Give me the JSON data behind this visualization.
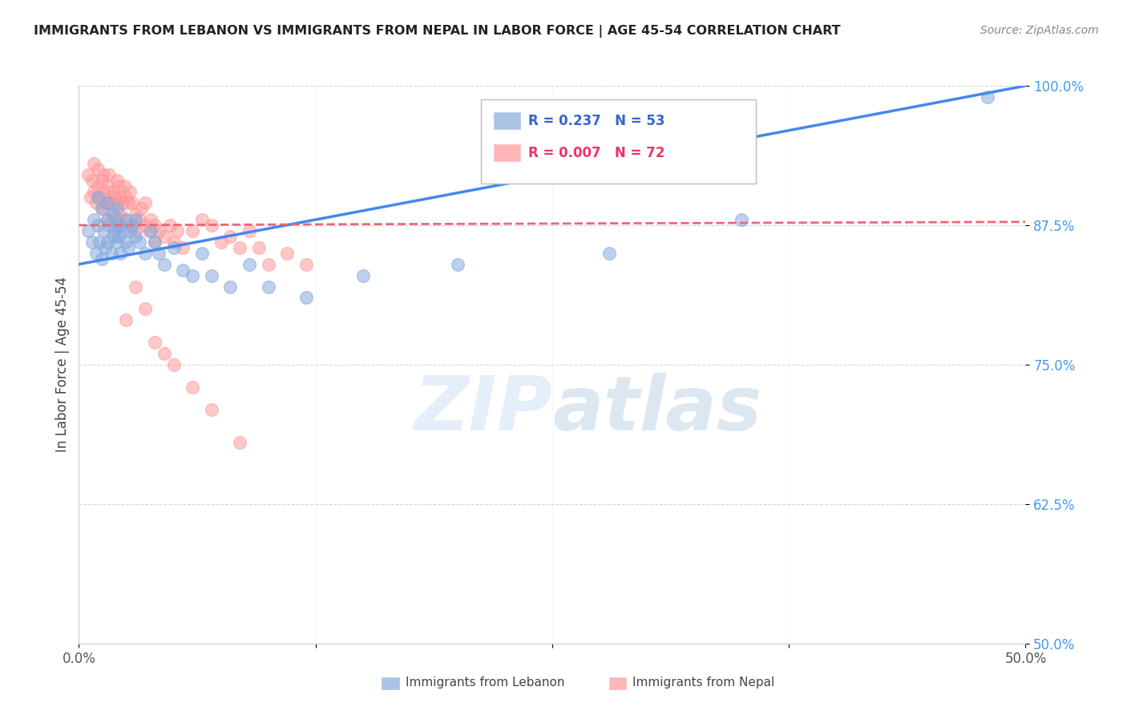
{
  "title": "IMMIGRANTS FROM LEBANON VS IMMIGRANTS FROM NEPAL IN LABOR FORCE | AGE 45-54 CORRELATION CHART",
  "source": "Source: ZipAtlas.com",
  "ylabel": "In Labor Force | Age 45-54",
  "xlim": [
    0.0,
    0.5
  ],
  "ylim": [
    0.5,
    1.0
  ],
  "yticks": [
    0.5,
    0.625,
    0.75,
    0.875,
    1.0
  ],
  "ytick_labels": [
    "50.0%",
    "62.5%",
    "75.0%",
    "87.5%",
    "100.0%"
  ],
  "xticks": [
    0.0,
    0.125,
    0.25,
    0.375,
    0.5
  ],
  "xtick_labels": [
    "0.0%",
    "",
    "",
    "",
    "50.0%"
  ],
  "legend_blue_label": "Immigrants from Lebanon",
  "legend_pink_label": "Immigrants from Nepal",
  "R_blue": 0.237,
  "N_blue": 53,
  "R_pink": 0.007,
  "N_pink": 72,
  "blue_color": "#88AADD",
  "pink_color": "#FF9999",
  "blue_line_color": "#4488EE",
  "pink_line_color": "#EE6677",
  "watermark_zip": "ZIP",
  "watermark_atlas": "atlas",
  "background_color": "#FFFFFF",
  "grid_color": "#CCCCCC",
  "blue_trend_x0": 0.0,
  "blue_trend_y0": 0.84,
  "blue_trend_x1": 0.5,
  "blue_trend_y1": 1.0,
  "pink_trend_x0": 0.0,
  "pink_trend_y0": 0.875,
  "pink_trend_x1": 0.5,
  "pink_trend_y1": 0.878,
  "blue_scatter_x": [
    0.005,
    0.007,
    0.008,
    0.009,
    0.01,
    0.01,
    0.011,
    0.012,
    0.012,
    0.013,
    0.014,
    0.015,
    0.015,
    0.015,
    0.016,
    0.017,
    0.018,
    0.018,
    0.019,
    0.02,
    0.02,
    0.02,
    0.021,
    0.022,
    0.022,
    0.023,
    0.025,
    0.025,
    0.026,
    0.027,
    0.028,
    0.03,
    0.03,
    0.032,
    0.035,
    0.038,
    0.04,
    0.042,
    0.045,
    0.05,
    0.055,
    0.06,
    0.065,
    0.07,
    0.08,
    0.09,
    0.1,
    0.12,
    0.15,
    0.2,
    0.28,
    0.35,
    0.48
  ],
  "blue_scatter_y": [
    0.87,
    0.86,
    0.88,
    0.85,
    0.875,
    0.9,
    0.86,
    0.845,
    0.89,
    0.87,
    0.855,
    0.88,
    0.895,
    0.86,
    0.875,
    0.85,
    0.885,
    0.865,
    0.87,
    0.875,
    0.86,
    0.89,
    0.865,
    0.875,
    0.85,
    0.87,
    0.88,
    0.86,
    0.855,
    0.87,
    0.875,
    0.865,
    0.88,
    0.86,
    0.85,
    0.87,
    0.86,
    0.85,
    0.84,
    0.855,
    0.835,
    0.83,
    0.85,
    0.83,
    0.82,
    0.84,
    0.82,
    0.81,
    0.83,
    0.84,
    0.85,
    0.88,
    0.99
  ],
  "pink_scatter_x": [
    0.005,
    0.006,
    0.007,
    0.008,
    0.008,
    0.009,
    0.01,
    0.01,
    0.011,
    0.012,
    0.012,
    0.013,
    0.013,
    0.014,
    0.015,
    0.015,
    0.016,
    0.016,
    0.017,
    0.018,
    0.018,
    0.019,
    0.02,
    0.02,
    0.02,
    0.021,
    0.022,
    0.022,
    0.023,
    0.024,
    0.025,
    0.025,
    0.026,
    0.027,
    0.028,
    0.028,
    0.03,
    0.03,
    0.032,
    0.033,
    0.035,
    0.035,
    0.037,
    0.038,
    0.04,
    0.04,
    0.042,
    0.045,
    0.048,
    0.05,
    0.052,
    0.055,
    0.06,
    0.065,
    0.07,
    0.075,
    0.08,
    0.085,
    0.09,
    0.095,
    0.1,
    0.11,
    0.12,
    0.03,
    0.025,
    0.035,
    0.04,
    0.045,
    0.05,
    0.06,
    0.07,
    0.085
  ],
  "pink_scatter_y": [
    0.92,
    0.9,
    0.915,
    0.905,
    0.93,
    0.895,
    0.91,
    0.925,
    0.9,
    0.915,
    0.89,
    0.905,
    0.92,
    0.895,
    0.91,
    0.88,
    0.9,
    0.92,
    0.895,
    0.905,
    0.885,
    0.9,
    0.915,
    0.895,
    0.88,
    0.91,
    0.9,
    0.885,
    0.895,
    0.91,
    0.9,
    0.88,
    0.895,
    0.905,
    0.895,
    0.875,
    0.885,
    0.87,
    0.88,
    0.89,
    0.875,
    0.895,
    0.87,
    0.88,
    0.875,
    0.86,
    0.87,
    0.865,
    0.875,
    0.86,
    0.87,
    0.855,
    0.87,
    0.88,
    0.875,
    0.86,
    0.865,
    0.855,
    0.87,
    0.855,
    0.84,
    0.85,
    0.84,
    0.82,
    0.79,
    0.8,
    0.77,
    0.76,
    0.75,
    0.73,
    0.71,
    0.68
  ]
}
